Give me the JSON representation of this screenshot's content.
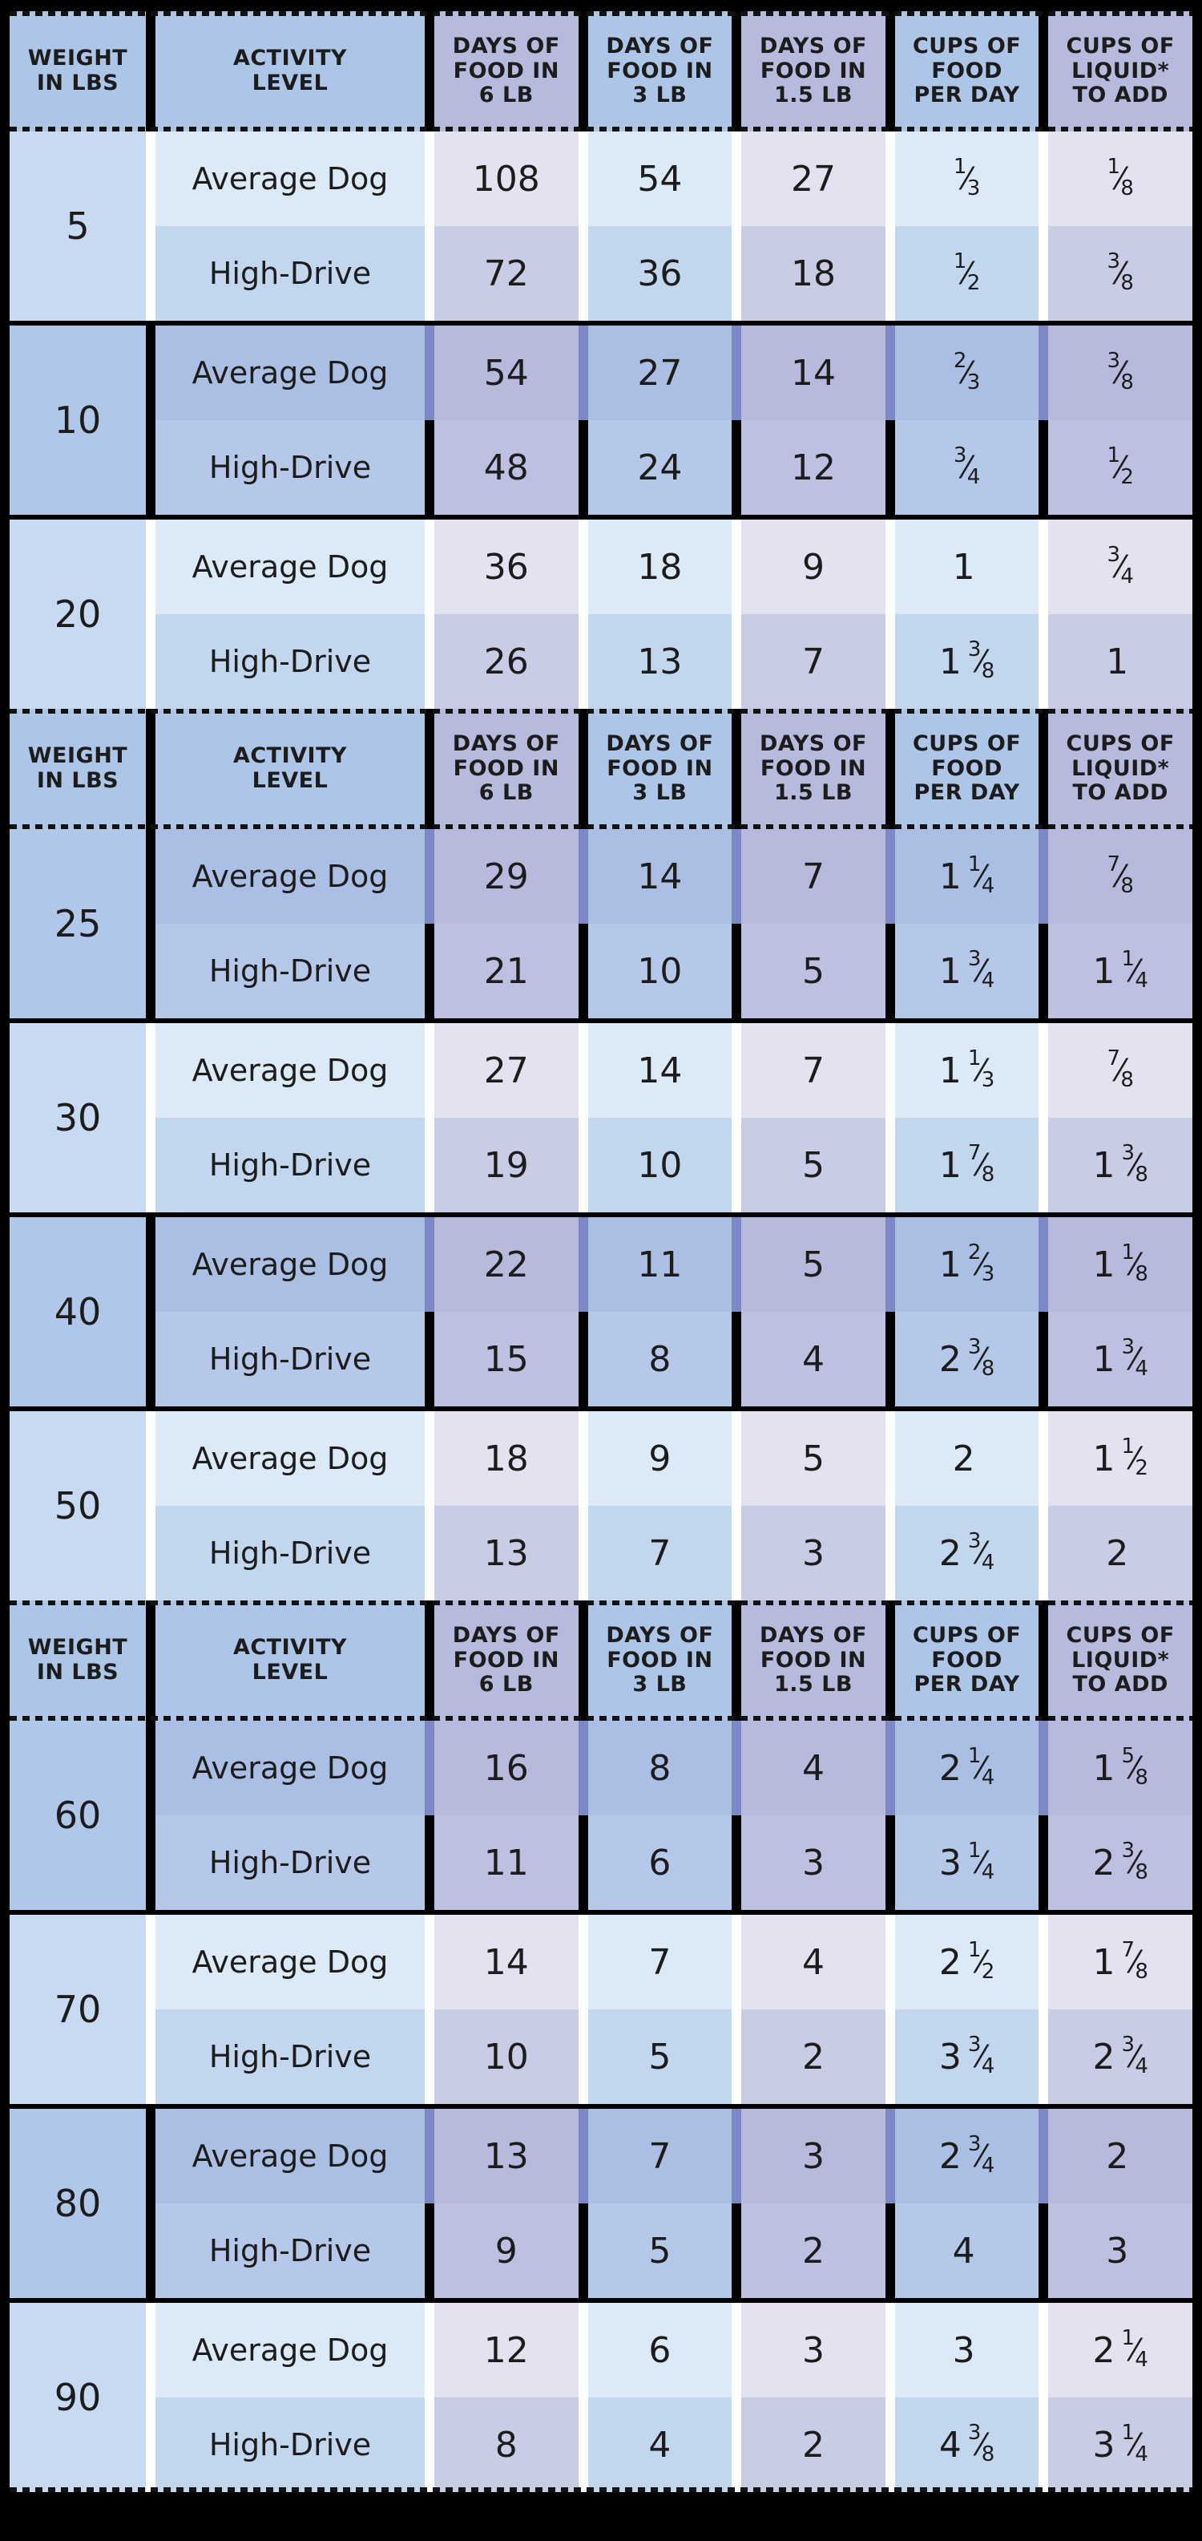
{
  "colors": {
    "page_background": "#000000",
    "header_blue": "#adc5e7",
    "header_lavender": "#b6badc",
    "light_group_weight": "#c7daf1",
    "light_group_blue_row1": "#dce9f6",
    "light_group_blue_row2": "#c2d6ee",
    "light_group_lavender_row1": "#e3e2f0",
    "light_group_lavender_row2": "#c9cce5",
    "dark_group_weight": "#b1c7e9",
    "dark_group_blue_row1": "#aabfe3",
    "dark_group_blue_row2": "#b5c8e9",
    "dark_group_lavender_row1": "#b7badd",
    "dark_group_lavender_row2": "#bdc0e1",
    "indigo_separator": "#7c88c7",
    "text": "#1c1c1c"
  },
  "header": {
    "columns": [
      {
        "lines": [
          "WEIGHT",
          "IN LBS"
        ],
        "hue": "blue"
      },
      {
        "lines": [
          "ACTIVITY",
          "LEVEL"
        ],
        "hue": "blue"
      },
      {
        "lines": [
          "DAYS OF",
          "FOOD IN",
          "6 LB"
        ],
        "hue": "lav"
      },
      {
        "lines": [
          "DAYS OF",
          "FOOD IN",
          "3 LB"
        ],
        "hue": "blue"
      },
      {
        "lines": [
          "DAYS OF",
          "FOOD IN",
          "1.5 LB"
        ],
        "hue": "lav"
      },
      {
        "lines": [
          "CUPS OF",
          "FOOD",
          "PER DAY"
        ],
        "hue": "blue"
      },
      {
        "lines": [
          "CUPS OF",
          "LIQUID*",
          "TO ADD"
        ],
        "hue": "lav"
      }
    ]
  },
  "sections": [
    {
      "groups": [
        {
          "weight": "5",
          "shade": "light",
          "rows": [
            {
              "activity": "Average Dog",
              "days_6lb": "108",
              "days_3lb": "54",
              "days_1_5lb": "27",
              "cups_food_per_day": {
                "whole": "",
                "num": "1",
                "den": "3"
              },
              "cups_liquid_to_add": {
                "whole": "",
                "num": "1",
                "den": "8"
              }
            },
            {
              "activity": "High-Drive",
              "days_6lb": "72",
              "days_3lb": "36",
              "days_1_5lb": "18",
              "cups_food_per_day": {
                "whole": "",
                "num": "1",
                "den": "2"
              },
              "cups_liquid_to_add": {
                "whole": "",
                "num": "3",
                "den": "8"
              }
            }
          ]
        },
        {
          "weight": "10",
          "shade": "dark",
          "rows": [
            {
              "activity": "Average Dog",
              "days_6lb": "54",
              "days_3lb": "27",
              "days_1_5lb": "14",
              "cups_food_per_day": {
                "whole": "",
                "num": "2",
                "den": "3"
              },
              "cups_liquid_to_add": {
                "whole": "",
                "num": "3",
                "den": "8"
              }
            },
            {
              "activity": "High-Drive",
              "days_6lb": "48",
              "days_3lb": "24",
              "days_1_5lb": "12",
              "cups_food_per_day": {
                "whole": "",
                "num": "3",
                "den": "4"
              },
              "cups_liquid_to_add": {
                "whole": "",
                "num": "1",
                "den": "2"
              }
            }
          ]
        },
        {
          "weight": "20",
          "shade": "light",
          "rows": [
            {
              "activity": "Average Dog",
              "days_6lb": "36",
              "days_3lb": "18",
              "days_1_5lb": "9",
              "cups_food_per_day": {
                "whole": "1",
                "num": "",
                "den": ""
              },
              "cups_liquid_to_add": {
                "whole": "",
                "num": "3",
                "den": "4"
              }
            },
            {
              "activity": "High-Drive",
              "days_6lb": "26",
              "days_3lb": "13",
              "days_1_5lb": "7",
              "cups_food_per_day": {
                "whole": "1",
                "num": "3",
                "den": "8"
              },
              "cups_liquid_to_add": {
                "whole": "1",
                "num": "",
                "den": ""
              }
            }
          ]
        }
      ]
    },
    {
      "groups": [
        {
          "weight": "25",
          "shade": "dark",
          "rows": [
            {
              "activity": "Average Dog",
              "days_6lb": "29",
              "days_3lb": "14",
              "days_1_5lb": "7",
              "cups_food_per_day": {
                "whole": "1",
                "num": "1",
                "den": "4"
              },
              "cups_liquid_to_add": {
                "whole": "",
                "num": "7",
                "den": "8"
              }
            },
            {
              "activity": "High-Drive",
              "days_6lb": "21",
              "days_3lb": "10",
              "days_1_5lb": "5",
              "cups_food_per_day": {
                "whole": "1",
                "num": "3",
                "den": "4"
              },
              "cups_liquid_to_add": {
                "whole": "1",
                "num": "1",
                "den": "4"
              }
            }
          ]
        },
        {
          "weight": "30",
          "shade": "light",
          "rows": [
            {
              "activity": "Average Dog",
              "days_6lb": "27",
              "days_3lb": "14",
              "days_1_5lb": "7",
              "cups_food_per_day": {
                "whole": "1",
                "num": "1",
                "den": "3"
              },
              "cups_liquid_to_add": {
                "whole": "",
                "num": "7",
                "den": "8"
              }
            },
            {
              "activity": "High-Drive",
              "days_6lb": "19",
              "days_3lb": "10",
              "days_1_5lb": "5",
              "cups_food_per_day": {
                "whole": "1",
                "num": "7",
                "den": "8"
              },
              "cups_liquid_to_add": {
                "whole": "1",
                "num": "3",
                "den": "8"
              }
            }
          ]
        },
        {
          "weight": "40",
          "shade": "dark",
          "rows": [
            {
              "activity": "Average Dog",
              "days_6lb": "22",
              "days_3lb": "11",
              "days_1_5lb": "5",
              "cups_food_per_day": {
                "whole": "1",
                "num": "2",
                "den": "3"
              },
              "cups_liquid_to_add": {
                "whole": "1",
                "num": "1",
                "den": "8"
              }
            },
            {
              "activity": "High-Drive",
              "days_6lb": "15",
              "days_3lb": "8",
              "days_1_5lb": "4",
              "cups_food_per_day": {
                "whole": "2",
                "num": "3",
                "den": "8"
              },
              "cups_liquid_to_add": {
                "whole": "1",
                "num": "3",
                "den": "4"
              }
            }
          ]
        },
        {
          "weight": "50",
          "shade": "light",
          "rows": [
            {
              "activity": "Average Dog",
              "days_6lb": "18",
              "days_3lb": "9",
              "days_1_5lb": "5",
              "cups_food_per_day": {
                "whole": "2",
                "num": "",
                "den": ""
              },
              "cups_liquid_to_add": {
                "whole": "1",
                "num": "1",
                "den": "2"
              }
            },
            {
              "activity": "High-Drive",
              "days_6lb": "13",
              "days_3lb": "7",
              "days_1_5lb": "3",
              "cups_food_per_day": {
                "whole": "2",
                "num": "3",
                "den": "4"
              },
              "cups_liquid_to_add": {
                "whole": "2",
                "num": "",
                "den": ""
              }
            }
          ]
        }
      ]
    },
    {
      "groups": [
        {
          "weight": "60",
          "shade": "dark",
          "rows": [
            {
              "activity": "Average Dog",
              "days_6lb": "16",
              "days_3lb": "8",
              "days_1_5lb": "4",
              "cups_food_per_day": {
                "whole": "2",
                "num": "1",
                "den": "4"
              },
              "cups_liquid_to_add": {
                "whole": "1",
                "num": "5",
                "den": "8"
              }
            },
            {
              "activity": "High-Drive",
              "days_6lb": "11",
              "days_3lb": "6",
              "days_1_5lb": "3",
              "cups_food_per_day": {
                "whole": "3",
                "num": "1",
                "den": "4"
              },
              "cups_liquid_to_add": {
                "whole": "2",
                "num": "3",
                "den": "8"
              }
            }
          ]
        },
        {
          "weight": "70",
          "shade": "light",
          "rows": [
            {
              "activity": "Average Dog",
              "days_6lb": "14",
              "days_3lb": "7",
              "days_1_5lb": "4",
              "cups_food_per_day": {
                "whole": "2",
                "num": "1",
                "den": "2"
              },
              "cups_liquid_to_add": {
                "whole": "1",
                "num": "7",
                "den": "8"
              }
            },
            {
              "activity": "High-Drive",
              "days_6lb": "10",
              "days_3lb": "5",
              "days_1_5lb": "2",
              "cups_food_per_day": {
                "whole": "3",
                "num": "3",
                "den": "4"
              },
              "cups_liquid_to_add": {
                "whole": "2",
                "num": "3",
                "den": "4"
              }
            }
          ]
        },
        {
          "weight": "80",
          "shade": "dark",
          "rows": [
            {
              "activity": "Average Dog",
              "days_6lb": "13",
              "days_3lb": "7",
              "days_1_5lb": "3",
              "cups_food_per_day": {
                "whole": "2",
                "num": "3",
                "den": "4"
              },
              "cups_liquid_to_add": {
                "whole": "2",
                "num": "",
                "den": ""
              }
            },
            {
              "activity": "High-Drive",
              "days_6lb": "9",
              "days_3lb": "5",
              "days_1_5lb": "2",
              "cups_food_per_day": {
                "whole": "4",
                "num": "",
                "den": ""
              },
              "cups_liquid_to_add": {
                "whole": "3",
                "num": "",
                "den": ""
              }
            }
          ]
        },
        {
          "weight": "90",
          "shade": "light",
          "rows": [
            {
              "activity": "Average Dog",
              "days_6lb": "12",
              "days_3lb": "6",
              "days_1_5lb": "3",
              "cups_food_per_day": {
                "whole": "3",
                "num": "",
                "den": ""
              },
              "cups_liquid_to_add": {
                "whole": "2",
                "num": "1",
                "den": "4"
              }
            },
            {
              "activity": "High-Drive",
              "days_6lb": "8",
              "days_3lb": "4",
              "days_1_5lb": "2",
              "cups_food_per_day": {
                "whole": "4",
                "num": "3",
                "den": "8"
              },
              "cups_liquid_to_add": {
                "whole": "3",
                "num": "1",
                "den": "4"
              }
            }
          ]
        }
      ]
    }
  ]
}
